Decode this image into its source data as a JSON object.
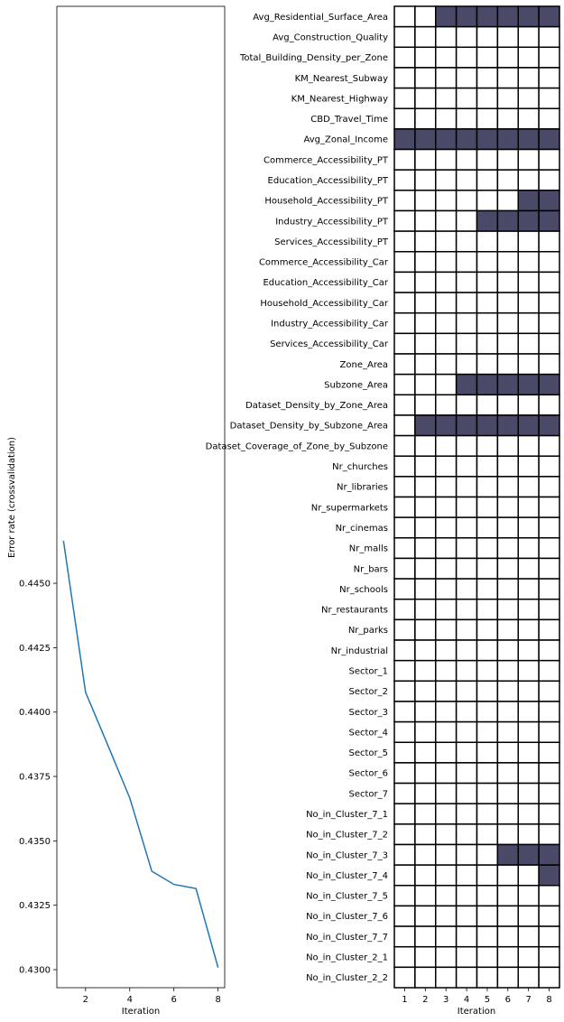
{
  "chart_data": [
    {
      "type": "line",
      "xlabel": "Iteration",
      "ylabel": "Error rate (crossvalidation)",
      "x": [
        1,
        2,
        3,
        4,
        5,
        6,
        7,
        8
      ],
      "series": [
        {
          "values": [
            0.44665,
            0.44077,
            0.43873,
            0.43667,
            0.43382,
            0.43331,
            0.43315,
            0.43008
          ],
          "color": "#1f77b4"
        }
      ],
      "xlim": [
        0.7,
        8.3
      ],
      "ylim": [
        0.4293,
        0.4674
      ],
      "xticks": [
        2,
        4,
        6,
        8
      ],
      "xtick_labels": [
        "2",
        "4",
        "6",
        "8"
      ],
      "yticks": [
        0.43,
        0.4325,
        0.435,
        0.4375,
        0.44,
        0.4425,
        0.445
      ],
      "ytick_labels": [
        "0.4300",
        "0.4325",
        "0.4350",
        "0.4375",
        "0.4400",
        "0.4425",
        "0.4450"
      ],
      "grid": false
    },
    {
      "type": "heatmap",
      "xlabel": "Iteration",
      "columns": [
        "1",
        "2",
        "3",
        "4",
        "5",
        "6",
        "7",
        "8"
      ],
      "rows": [
        "Avg_Residential_Surface_Area",
        "Avg_Construction_Quality",
        "Total_Building_Density_per_Zone",
        "KM_Nearest_Subway",
        "KM_Nearest_Highway",
        "CBD_Travel_Time",
        "Avg_Zonal_Income",
        "Commerce_Accessibility_PT",
        "Education_Accessibility_PT",
        "Household_Accessibility_PT",
        "Industry_Accessibility_PT",
        "Services_Accessibility_PT",
        "Commerce_Accessibility_Car",
        "Education_Accessibility_Car",
        "Household_Accessibility_Car",
        "Industry_Accessibility_Car",
        "Services_Accessibility_Car",
        "Zone_Area",
        "Subzone_Area",
        "Dataset_Density_by_Zone_Area",
        "Dataset_Density_by_Subzone_Area",
        "Dataset_Coverage_of_Zone_by_Subzone",
        "Nr_churches",
        "Nr_libraries",
        "Nr_supermarkets",
        "Nr_cinemas",
        "Nr_malls",
        "Nr_bars",
        "Nr_schools",
        "Nr_restaurants",
        "Nr_parks",
        "Nr_industrial",
        "Sector_1",
        "Sector_2",
        "Sector_3",
        "Sector_4",
        "Sector_5",
        "Sector_6",
        "Sector_7",
        "No_in_Cluster_7_1",
        "No_in_Cluster_7_2",
        "No_in_Cluster_7_3",
        "No_in_Cluster_7_4",
        "No_in_Cluster_7_5",
        "No_in_Cluster_7_6",
        "No_in_Cluster_7_7",
        "No_in_Cluster_2_1",
        "No_in_Cluster_2_2"
      ],
      "selected": [
        [
          0,
          0,
          1,
          1,
          1,
          1,
          1,
          1
        ],
        [
          0,
          0,
          0,
          0,
          0,
          0,
          0,
          0
        ],
        [
          0,
          0,
          0,
          0,
          0,
          0,
          0,
          0
        ],
        [
          0,
          0,
          0,
          0,
          0,
          0,
          0,
          0
        ],
        [
          0,
          0,
          0,
          0,
          0,
          0,
          0,
          0
        ],
        [
          0,
          0,
          0,
          0,
          0,
          0,
          0,
          0
        ],
        [
          1,
          1,
          1,
          1,
          1,
          1,
          1,
          1
        ],
        [
          0,
          0,
          0,
          0,
          0,
          0,
          0,
          0
        ],
        [
          0,
          0,
          0,
          0,
          0,
          0,
          0,
          0
        ],
        [
          0,
          0,
          0,
          0,
          0,
          0,
          1,
          1
        ],
        [
          0,
          0,
          0,
          0,
          1,
          1,
          1,
          1
        ],
        [
          0,
          0,
          0,
          0,
          0,
          0,
          0,
          0
        ],
        [
          0,
          0,
          0,
          0,
          0,
          0,
          0,
          0
        ],
        [
          0,
          0,
          0,
          0,
          0,
          0,
          0,
          0
        ],
        [
          0,
          0,
          0,
          0,
          0,
          0,
          0,
          0
        ],
        [
          0,
          0,
          0,
          0,
          0,
          0,
          0,
          0
        ],
        [
          0,
          0,
          0,
          0,
          0,
          0,
          0,
          0
        ],
        [
          0,
          0,
          0,
          0,
          0,
          0,
          0,
          0
        ],
        [
          0,
          0,
          0,
          1,
          1,
          1,
          1,
          1
        ],
        [
          0,
          0,
          0,
          0,
          0,
          0,
          0,
          0
        ],
        [
          0,
          1,
          1,
          1,
          1,
          1,
          1,
          1
        ],
        [
          0,
          0,
          0,
          0,
          0,
          0,
          0,
          0
        ],
        [
          0,
          0,
          0,
          0,
          0,
          0,
          0,
          0
        ],
        [
          0,
          0,
          0,
          0,
          0,
          0,
          0,
          0
        ],
        [
          0,
          0,
          0,
          0,
          0,
          0,
          0,
          0
        ],
        [
          0,
          0,
          0,
          0,
          0,
          0,
          0,
          0
        ],
        [
          0,
          0,
          0,
          0,
          0,
          0,
          0,
          0
        ],
        [
          0,
          0,
          0,
          0,
          0,
          0,
          0,
          0
        ],
        [
          0,
          0,
          0,
          0,
          0,
          0,
          0,
          0
        ],
        [
          0,
          0,
          0,
          0,
          0,
          0,
          0,
          0
        ],
        [
          0,
          0,
          0,
          0,
          0,
          0,
          0,
          0
        ],
        [
          0,
          0,
          0,
          0,
          0,
          0,
          0,
          0
        ],
        [
          0,
          0,
          0,
          0,
          0,
          0,
          0,
          0
        ],
        [
          0,
          0,
          0,
          0,
          0,
          0,
          0,
          0
        ],
        [
          0,
          0,
          0,
          0,
          0,
          0,
          0,
          0
        ],
        [
          0,
          0,
          0,
          0,
          0,
          0,
          0,
          0
        ],
        [
          0,
          0,
          0,
          0,
          0,
          0,
          0,
          0
        ],
        [
          0,
          0,
          0,
          0,
          0,
          0,
          0,
          0
        ],
        [
          0,
          0,
          0,
          0,
          0,
          0,
          0,
          0
        ],
        [
          0,
          0,
          0,
          0,
          0,
          0,
          0,
          0
        ],
        [
          0,
          0,
          0,
          0,
          0,
          0,
          0,
          0
        ],
        [
          0,
          0,
          0,
          0,
          0,
          1,
          1,
          1
        ],
        [
          0,
          0,
          0,
          0,
          0,
          0,
          0,
          1
        ],
        [
          0,
          0,
          0,
          0,
          0,
          0,
          0,
          0
        ],
        [
          0,
          0,
          0,
          0,
          0,
          0,
          0,
          0
        ],
        [
          0,
          0,
          0,
          0,
          0,
          0,
          0,
          0
        ],
        [
          0,
          0,
          0,
          0,
          0,
          0,
          0,
          0
        ],
        [
          0,
          0,
          0,
          0,
          0,
          0,
          0,
          0
        ]
      ],
      "selected_color": "#4a4a68",
      "unselected_color": "#ffffff",
      "cell_border_color": "#000000"
    }
  ]
}
